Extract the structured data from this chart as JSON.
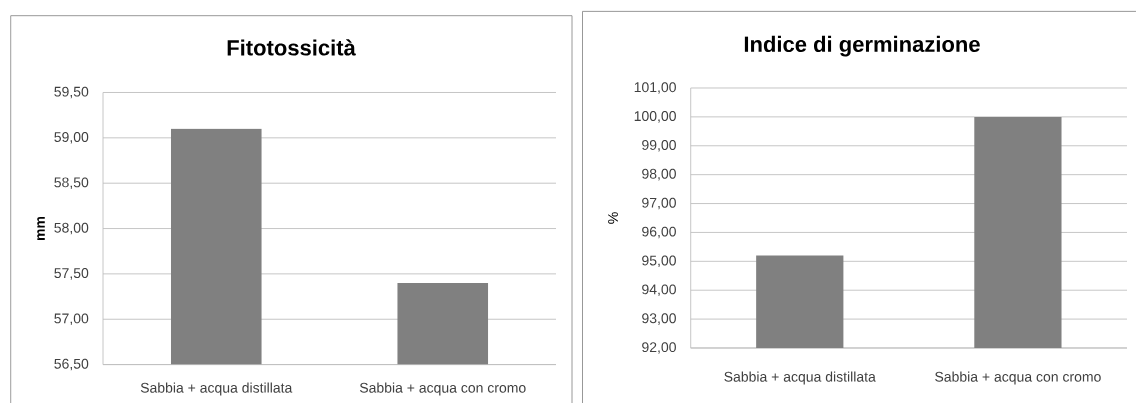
{
  "chart_data": [
    {
      "type": "bar",
      "title": "Fitotossicità",
      "ylabel": "mm",
      "categories": [
        "Sabbia + acqua distillata",
        "Sabbia + acqua con cromo"
      ],
      "values": [
        59.1,
        57.4
      ],
      "color": "#808080",
      "ylim": [
        56.5,
        59.5
      ],
      "yticks": [
        {
          "value": 56.5,
          "label": "56,50"
        },
        {
          "value": 57,
          "label": "57,00"
        },
        {
          "value": 57.5,
          "label": "57,50"
        },
        {
          "value": 58,
          "label": "58,00"
        },
        {
          "value": 58.5,
          "label": "58,50"
        },
        {
          "value": 59,
          "label": "59,00"
        },
        {
          "value": 59.5,
          "label": "59,50"
        }
      ],
      "grid": "y"
    },
    {
      "type": "bar",
      "title": "Indice di germinazione",
      "ylabel": "%",
      "categories": [
        "Sabbia + acqua distillata",
        "Sabbia + acqua con cromo"
      ],
      "values": [
        95.2,
        100.0
      ],
      "color": "#808080",
      "ylim": [
        92,
        101
      ],
      "yticks": [
        {
          "value": 92,
          "label": "92,00"
        },
        {
          "value": 93,
          "label": "93,00"
        },
        {
          "value": 94,
          "label": "94,00"
        },
        {
          "value": 95,
          "label": "95,00"
        },
        {
          "value": 96,
          "label": "96,00"
        },
        {
          "value": 97,
          "label": "97,00"
        },
        {
          "value": 98,
          "label": "98,00"
        },
        {
          "value": 99,
          "label": "99,00"
        },
        {
          "value": 100,
          "label": "100,00"
        },
        {
          "value": 101,
          "label": "101,00"
        }
      ],
      "grid": "y"
    }
  ]
}
